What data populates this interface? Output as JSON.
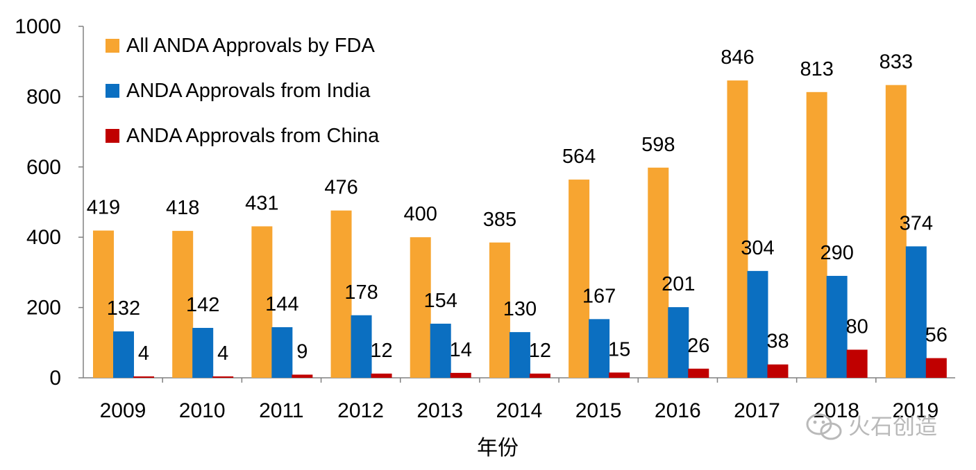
{
  "chart_data": {
    "type": "bar",
    "title": "",
    "xlabel": "年份",
    "ylabel": "",
    "ylim": [
      0,
      1000
    ],
    "yticks": [
      0,
      200,
      400,
      600,
      800,
      1000
    ],
    "grid": false,
    "legend_position": "top-left",
    "categories": [
      "2009",
      "2010",
      "2011",
      "2012",
      "2013",
      "2014",
      "2015",
      "2016",
      "2017",
      "2018",
      "2019"
    ],
    "series": [
      {
        "name": "All ANDA Approvals by FDA",
        "color": "#F7A531",
        "values": [
          419,
          418,
          431,
          476,
          400,
          385,
          564,
          598,
          846,
          813,
          833
        ]
      },
      {
        "name": "ANDA Approvals from India",
        "color": "#0B6FC1",
        "values": [
          132,
          142,
          144,
          178,
          154,
          130,
          167,
          201,
          304,
          290,
          374
        ]
      },
      {
        "name": "ANDA Approvals from China",
        "color": "#C00000",
        "values": [
          4,
          4,
          9,
          12,
          14,
          12,
          15,
          26,
          38,
          80,
          56
        ]
      }
    ]
  },
  "watermark": {
    "text": "火石创造",
    "icon": "wechat-icon"
  }
}
